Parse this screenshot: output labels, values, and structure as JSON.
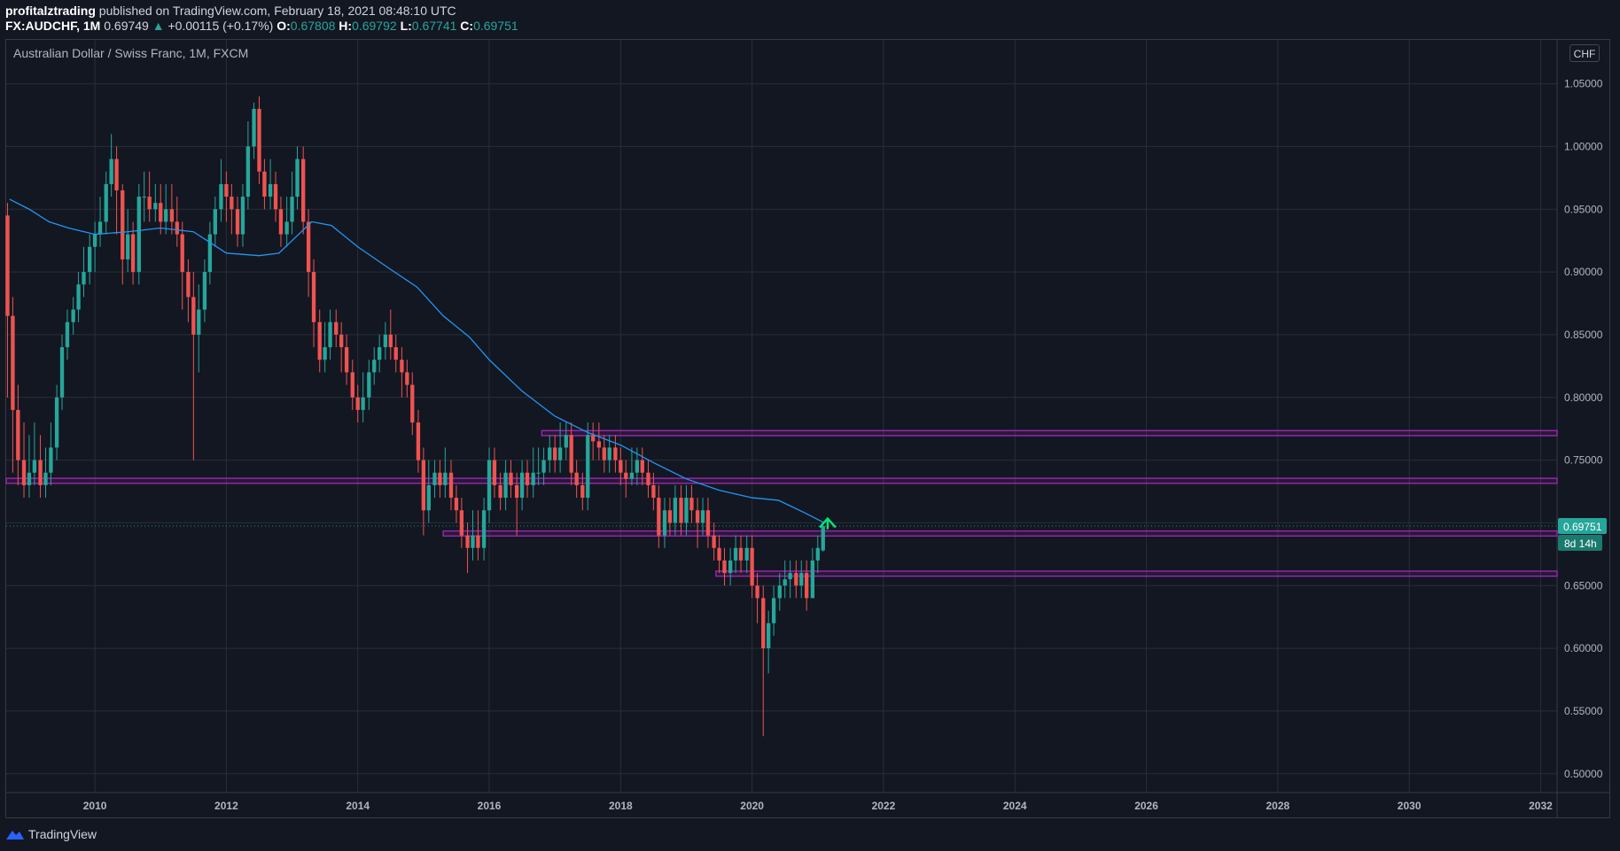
{
  "header": {
    "author": "profitalztrading",
    "published": "published on TradingView.com, February 18, 2021 08:48:10 UTC",
    "symbol": "FX:AUDCHF, 1M",
    "last": "0.69749",
    "change": "+0.00115 (+0.17%)",
    "o_label": "O:",
    "o_val": "0.67808",
    "h_label": "H:",
    "h_val": "0.69792",
    "l_label": "L:",
    "l_val": "0.67741",
    "c_label": "C:",
    "c_val": "0.69751"
  },
  "chart_title": "Australian Dollar / Swiss Franc, 1M, FXCM",
  "currency_button": "CHF",
  "footer_logo": "TradingView",
  "colors": {
    "background": "#131722",
    "grid": "#2a2e39",
    "up": "#26a69a",
    "down": "#ef5350",
    "ma": "#2196f3",
    "zone": "#9c27b0",
    "arrow": "#00e676",
    "axis_text": "#b2b5be"
  },
  "chart_data": {
    "type": "candlestick",
    "title": "Australian Dollar / Swiss Franc, 1M, FXCM",
    "x_ticks": [
      "2010",
      "2012",
      "2014",
      "2016",
      "2018",
      "2020",
      "2022",
      "2024",
      "2026",
      "2028",
      "2030",
      "2032"
    ],
    "y_ticks": [
      "1.05000",
      "1.00000",
      "0.95000",
      "0.90000",
      "0.85000",
      "0.80000",
      "0.75000",
      "0.70000",
      "0.65000",
      "0.60000",
      "0.55000",
      "0.50000"
    ],
    "x_range": [
      2008.65,
      2032.25
    ],
    "y_range": [
      0.485,
      1.085
    ],
    "last_price": "0.69751",
    "countdown": "8d 14h",
    "moving_average": [
      [
        2008.7,
        0.958
      ],
      [
        2009.0,
        0.95
      ],
      [
        2009.3,
        0.94
      ],
      [
        2009.6,
        0.935
      ],
      [
        2010.0,
        0.93
      ],
      [
        2010.5,
        0.932
      ],
      [
        2011.0,
        0.935
      ],
      [
        2011.5,
        0.932
      ],
      [
        2012.0,
        0.915
      ],
      [
        2012.5,
        0.913
      ],
      [
        2012.8,
        0.915
      ],
      [
        2013.0,
        0.925
      ],
      [
        2013.3,
        0.94
      ],
      [
        2013.6,
        0.937
      ],
      [
        2014.0,
        0.92
      ],
      [
        2014.5,
        0.902
      ],
      [
        2014.9,
        0.888
      ],
      [
        2015.3,
        0.865
      ],
      [
        2015.7,
        0.848
      ],
      [
        2016.0,
        0.83
      ],
      [
        2016.5,
        0.805
      ],
      [
        2017.0,
        0.785
      ],
      [
        2017.5,
        0.772
      ],
      [
        2018.0,
        0.762
      ],
      [
        2018.5,
        0.748
      ],
      [
        2019.0,
        0.735
      ],
      [
        2019.5,
        0.726
      ],
      [
        2020.0,
        0.72
      ],
      [
        2020.4,
        0.718
      ],
      [
        2020.8,
        0.708
      ],
      [
        2021.1,
        0.7
      ]
    ],
    "zones": [
      {
        "x_start": 2016.8,
        "y": [
          0.7695,
          0.7735
        ]
      },
      {
        "x_start": 2008.65,
        "y": [
          0.7315,
          0.7355
        ]
      },
      {
        "x_start": 2015.3,
        "y": [
          0.6895,
          0.6935
        ]
      },
      {
        "x_start": 2019.45,
        "y": [
          0.6575,
          0.6615
        ]
      }
    ],
    "candles": [
      [
        2008.67,
        0.945,
        0.865,
        0.955,
        0.8
      ],
      [
        2008.75,
        0.865,
        0.79,
        0.88,
        0.74
      ],
      [
        2008.83,
        0.79,
        0.75,
        0.81,
        0.73
      ],
      [
        2008.92,
        0.75,
        0.73,
        0.78,
        0.72
      ],
      [
        2009.0,
        0.73,
        0.74,
        0.77,
        0.72
      ],
      [
        2009.08,
        0.74,
        0.75,
        0.78,
        0.73
      ],
      [
        2009.17,
        0.75,
        0.73,
        0.77,
        0.72
      ],
      [
        2009.25,
        0.73,
        0.74,
        0.76,
        0.72
      ],
      [
        2009.33,
        0.74,
        0.76,
        0.78,
        0.73
      ],
      [
        2009.42,
        0.76,
        0.8,
        0.81,
        0.75
      ],
      [
        2009.5,
        0.8,
        0.84,
        0.85,
        0.79
      ],
      [
        2009.58,
        0.84,
        0.86,
        0.87,
        0.83
      ],
      [
        2009.67,
        0.86,
        0.87,
        0.88,
        0.85
      ],
      [
        2009.75,
        0.87,
        0.89,
        0.9,
        0.86
      ],
      [
        2009.83,
        0.89,
        0.9,
        0.92,
        0.88
      ],
      [
        2009.92,
        0.9,
        0.92,
        0.93,
        0.89
      ],
      [
        2010.0,
        0.92,
        0.93,
        0.94,
        0.9
      ],
      [
        2010.08,
        0.93,
        0.94,
        0.96,
        0.92
      ],
      [
        2010.17,
        0.94,
        0.97,
        0.98,
        0.93
      ],
      [
        2010.25,
        0.97,
        0.99,
        1.01,
        0.96
      ],
      [
        2010.33,
        0.99,
        0.965,
        1.0,
        0.93
      ],
      [
        2010.42,
        0.965,
        0.91,
        0.97,
        0.89
      ],
      [
        2010.5,
        0.91,
        0.93,
        0.95,
        0.9
      ],
      [
        2010.58,
        0.93,
        0.9,
        0.94,
        0.89
      ],
      [
        2010.67,
        0.9,
        0.96,
        0.97,
        0.89
      ],
      [
        2010.75,
        0.96,
        0.96,
        0.98,
        0.94
      ],
      [
        2010.83,
        0.96,
        0.95,
        0.98,
        0.94
      ],
      [
        2010.92,
        0.95,
        0.955,
        0.97,
        0.94
      ],
      [
        2011.0,
        0.955,
        0.94,
        0.97,
        0.93
      ],
      [
        2011.08,
        0.94,
        0.95,
        0.97,
        0.93
      ],
      [
        2011.17,
        0.95,
        0.94,
        0.97,
        0.93
      ],
      [
        2011.25,
        0.94,
        0.93,
        0.96,
        0.92
      ],
      [
        2011.33,
        0.93,
        0.9,
        0.94,
        0.87
      ],
      [
        2011.42,
        0.9,
        0.88,
        0.91,
        0.86
      ],
      [
        2011.5,
        0.88,
        0.85,
        0.9,
        0.75
      ],
      [
        2011.58,
        0.85,
        0.87,
        0.89,
        0.82
      ],
      [
        2011.67,
        0.87,
        0.9,
        0.91,
        0.86
      ],
      [
        2011.75,
        0.9,
        0.93,
        0.94,
        0.89
      ],
      [
        2011.83,
        0.93,
        0.95,
        0.96,
        0.92
      ],
      [
        2011.92,
        0.95,
        0.97,
        0.99,
        0.94
      ],
      [
        2012.0,
        0.97,
        0.96,
        0.98,
        0.94
      ],
      [
        2012.08,
        0.96,
        0.95,
        0.97,
        0.93
      ],
      [
        2012.17,
        0.95,
        0.93,
        0.96,
        0.92
      ],
      [
        2012.25,
        0.93,
        0.96,
        0.97,
        0.92
      ],
      [
        2012.33,
        0.96,
        1.0,
        1.02,
        0.95
      ],
      [
        2012.42,
        1.0,
        1.03,
        1.035,
        0.99
      ],
      [
        2012.5,
        1.03,
        0.98,
        1.04,
        0.97
      ],
      [
        2012.58,
        0.98,
        0.96,
        0.99,
        0.95
      ],
      [
        2012.67,
        0.96,
        0.97,
        0.99,
        0.95
      ],
      [
        2012.75,
        0.97,
        0.95,
        0.98,
        0.94
      ],
      [
        2012.83,
        0.95,
        0.93,
        0.96,
        0.92
      ],
      [
        2012.92,
        0.93,
        0.94,
        0.96,
        0.92
      ],
      [
        2013.0,
        0.94,
        0.96,
        0.98,
        0.93
      ],
      [
        2013.08,
        0.96,
        0.99,
        1.0,
        0.95
      ],
      [
        2013.17,
        0.99,
        0.94,
        1.0,
        0.93
      ],
      [
        2013.25,
        0.94,
        0.9,
        0.95,
        0.88
      ],
      [
        2013.33,
        0.9,
        0.86,
        0.91,
        0.84
      ],
      [
        2013.42,
        0.86,
        0.83,
        0.87,
        0.82
      ],
      [
        2013.5,
        0.83,
        0.84,
        0.86,
        0.82
      ],
      [
        2013.58,
        0.84,
        0.86,
        0.87,
        0.83
      ],
      [
        2013.67,
        0.86,
        0.85,
        0.87,
        0.84
      ],
      [
        2013.75,
        0.85,
        0.84,
        0.86,
        0.82
      ],
      [
        2013.83,
        0.84,
        0.82,
        0.85,
        0.81
      ],
      [
        2013.92,
        0.82,
        0.8,
        0.83,
        0.79
      ],
      [
        2014.0,
        0.8,
        0.79,
        0.81,
        0.78
      ],
      [
        2014.08,
        0.79,
        0.8,
        0.82,
        0.78
      ],
      [
        2014.17,
        0.8,
        0.82,
        0.83,
        0.79
      ],
      [
        2014.25,
        0.82,
        0.83,
        0.84,
        0.81
      ],
      [
        2014.33,
        0.83,
        0.84,
        0.85,
        0.82
      ],
      [
        2014.42,
        0.84,
        0.85,
        0.86,
        0.83
      ],
      [
        2014.5,
        0.85,
        0.84,
        0.87,
        0.83
      ],
      [
        2014.58,
        0.84,
        0.83,
        0.85,
        0.82
      ],
      [
        2014.67,
        0.83,
        0.82,
        0.84,
        0.8
      ],
      [
        2014.75,
        0.82,
        0.81,
        0.83,
        0.8
      ],
      [
        2014.83,
        0.81,
        0.78,
        0.82,
        0.77
      ],
      [
        2014.92,
        0.78,
        0.75,
        0.79,
        0.74
      ],
      [
        2015.0,
        0.75,
        0.71,
        0.76,
        0.69
      ],
      [
        2015.08,
        0.71,
        0.73,
        0.75,
        0.7
      ],
      [
        2015.17,
        0.73,
        0.74,
        0.75,
        0.72
      ],
      [
        2015.25,
        0.74,
        0.73,
        0.75,
        0.72
      ],
      [
        2015.33,
        0.73,
        0.74,
        0.76,
        0.72
      ],
      [
        2015.42,
        0.74,
        0.72,
        0.75,
        0.71
      ],
      [
        2015.5,
        0.72,
        0.71,
        0.73,
        0.7
      ],
      [
        2015.58,
        0.71,
        0.69,
        0.72,
        0.68
      ],
      [
        2015.67,
        0.69,
        0.68,
        0.7,
        0.66
      ],
      [
        2015.75,
        0.68,
        0.69,
        0.71,
        0.67
      ],
      [
        2015.83,
        0.69,
        0.68,
        0.71,
        0.67
      ],
      [
        2015.92,
        0.68,
        0.71,
        0.72,
        0.67
      ],
      [
        2016.0,
        0.71,
        0.75,
        0.76,
        0.7
      ],
      [
        2016.08,
        0.75,
        0.73,
        0.76,
        0.72
      ],
      [
        2016.17,
        0.73,
        0.72,
        0.74,
        0.71
      ],
      [
        2016.25,
        0.72,
        0.74,
        0.75,
        0.71
      ],
      [
        2016.33,
        0.74,
        0.73,
        0.75,
        0.72
      ],
      [
        2016.42,
        0.73,
        0.72,
        0.74,
        0.69
      ],
      [
        2016.5,
        0.72,
        0.74,
        0.75,
        0.71
      ],
      [
        2016.58,
        0.74,
        0.73,
        0.75,
        0.72
      ],
      [
        2016.67,
        0.73,
        0.74,
        0.76,
        0.72
      ],
      [
        2016.75,
        0.74,
        0.74,
        0.76,
        0.73
      ],
      [
        2016.83,
        0.74,
        0.75,
        0.76,
        0.73
      ],
      [
        2016.92,
        0.75,
        0.76,
        0.77,
        0.74
      ],
      [
        2017.0,
        0.76,
        0.75,
        0.77,
        0.74
      ],
      [
        2017.08,
        0.75,
        0.76,
        0.78,
        0.74
      ],
      [
        2017.17,
        0.76,
        0.77,
        0.78,
        0.75
      ],
      [
        2017.25,
        0.77,
        0.74,
        0.78,
        0.73
      ],
      [
        2017.33,
        0.74,
        0.73,
        0.75,
        0.72
      ],
      [
        2017.42,
        0.73,
        0.72,
        0.74,
        0.71
      ],
      [
        2017.5,
        0.72,
        0.77,
        0.78,
        0.71
      ],
      [
        2017.58,
        0.77,
        0.765,
        0.78,
        0.75
      ],
      [
        2017.67,
        0.765,
        0.76,
        0.78,
        0.75
      ],
      [
        2017.75,
        0.76,
        0.75,
        0.77,
        0.74
      ],
      [
        2017.83,
        0.75,
        0.76,
        0.77,
        0.74
      ],
      [
        2017.92,
        0.76,
        0.75,
        0.77,
        0.74
      ],
      [
        2018.0,
        0.75,
        0.74,
        0.76,
        0.73
      ],
      [
        2018.08,
        0.74,
        0.735,
        0.75,
        0.72
      ],
      [
        2018.17,
        0.735,
        0.74,
        0.76,
        0.73
      ],
      [
        2018.25,
        0.74,
        0.75,
        0.76,
        0.73
      ],
      [
        2018.33,
        0.75,
        0.74,
        0.76,
        0.73
      ],
      [
        2018.42,
        0.74,
        0.73,
        0.75,
        0.72
      ],
      [
        2018.5,
        0.73,
        0.72,
        0.74,
        0.71
      ],
      [
        2018.58,
        0.72,
        0.69,
        0.73,
        0.68
      ],
      [
        2018.67,
        0.69,
        0.71,
        0.72,
        0.68
      ],
      [
        2018.75,
        0.71,
        0.7,
        0.72,
        0.69
      ],
      [
        2018.83,
        0.7,
        0.72,
        0.73,
        0.69
      ],
      [
        2018.92,
        0.72,
        0.7,
        0.73,
        0.69
      ],
      [
        2019.0,
        0.7,
        0.72,
        0.73,
        0.69
      ],
      [
        2019.08,
        0.72,
        0.71,
        0.73,
        0.7
      ],
      [
        2019.17,
        0.71,
        0.7,
        0.72,
        0.68
      ],
      [
        2019.25,
        0.7,
        0.71,
        0.72,
        0.69
      ],
      [
        2019.33,
        0.71,
        0.69,
        0.72,
        0.68
      ],
      [
        2019.42,
        0.69,
        0.68,
        0.7,
        0.67
      ],
      [
        2019.5,
        0.68,
        0.67,
        0.69,
        0.66
      ],
      [
        2019.58,
        0.67,
        0.66,
        0.68,
        0.65
      ],
      [
        2019.67,
        0.66,
        0.67,
        0.68,
        0.65
      ],
      [
        2019.75,
        0.67,
        0.68,
        0.69,
        0.66
      ],
      [
        2019.83,
        0.68,
        0.67,
        0.69,
        0.66
      ],
      [
        2019.92,
        0.67,
        0.68,
        0.69,
        0.66
      ],
      [
        2020.0,
        0.68,
        0.65,
        0.69,
        0.64
      ],
      [
        2020.08,
        0.65,
        0.64,
        0.66,
        0.62
      ],
      [
        2020.17,
        0.64,
        0.6,
        0.65,
        0.53
      ],
      [
        2020.25,
        0.6,
        0.62,
        0.63,
        0.58
      ],
      [
        2020.33,
        0.62,
        0.64,
        0.65,
        0.61
      ],
      [
        2020.42,
        0.64,
        0.65,
        0.66,
        0.63
      ],
      [
        2020.5,
        0.65,
        0.655,
        0.67,
        0.64
      ],
      [
        2020.58,
        0.655,
        0.66,
        0.67,
        0.64
      ],
      [
        2020.67,
        0.66,
        0.65,
        0.67,
        0.64
      ],
      [
        2020.75,
        0.65,
        0.66,
        0.67,
        0.64
      ],
      [
        2020.83,
        0.66,
        0.64,
        0.67,
        0.63
      ],
      [
        2020.92,
        0.64,
        0.67,
        0.68,
        0.64
      ],
      [
        2021.0,
        0.67,
        0.68,
        0.69,
        0.66
      ],
      [
        2021.08,
        0.678,
        0.6975,
        0.698,
        0.677
      ]
    ]
  }
}
